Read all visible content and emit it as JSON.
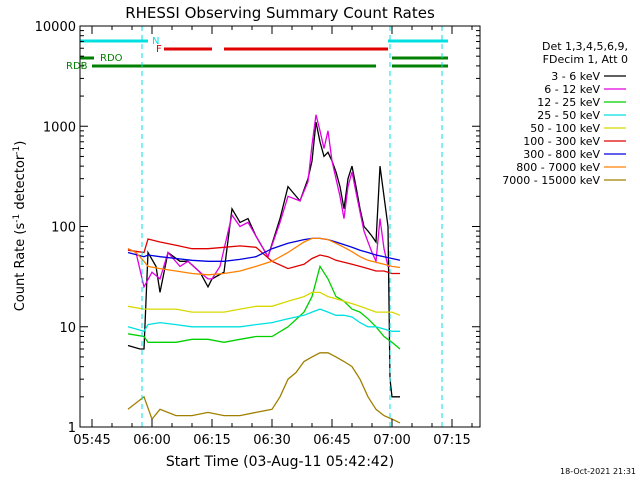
{
  "chart_data": {
    "type": "line",
    "title": "RHESSI Observing Summary Count Rates",
    "xlabel": "Start Time (03-Aug-11 05:42:42)",
    "ylabel_main": "Count Rate (s",
    "ylabel_sup1": "-1",
    "ylabel_mid": " detector",
    "ylabel_sup2": "-1",
    "ylabel_end": ")",
    "x_range_min": [
      0,
      100
    ],
    "y_scale": "log",
    "ylim": [
      1,
      10000
    ],
    "xtick_minutes": [
      3,
      18,
      33,
      48,
      63,
      78,
      93
    ],
    "xtick_labels": [
      "05:45",
      "06:00",
      "06:15",
      "06:30",
      "06:45",
      "07:00",
      "07:15"
    ],
    "ytick_values": [
      1,
      10,
      100,
      1000,
      10000
    ],
    "ytick_labels": [
      "1",
      "10",
      "100",
      "1000",
      "10000"
    ],
    "timestamp": "18-Oct-2021 21:31",
    "legend": {
      "header1": "Det 1,3,4,5,6,9,",
      "header2": "FDecim 1, Att 0",
      "entries": [
        {
          "label": "3 - 6 keV",
          "color": "#000000"
        },
        {
          "label": "6 - 12 keV",
          "color": "#e000e0"
        },
        {
          "label": "12 - 25 keV",
          "color": "#00d000"
        },
        {
          "label": "25 - 50 keV",
          "color": "#00e0e0"
        },
        {
          "label": "50 - 100 keV",
          "color": "#d8d800"
        },
        {
          "label": "100 - 300 keV",
          "color": "#e00000"
        },
        {
          "label": "300 - 800 keV",
          "color": "#0000e0"
        },
        {
          "label": "800 - 7000 keV",
          "color": "#ff8000"
        },
        {
          "label": "7000 - 15000 keV",
          "color": "#a08000"
        }
      ]
    },
    "flag_labels": {
      "n": "N",
      "f": "F",
      "rdo": "RDO",
      "rdb": "RDB"
    },
    "flag_bars": {
      "night": {
        "color": "#00e0e0",
        "segments": [
          [
            0,
            17
          ],
          [
            77,
            92
          ]
        ]
      },
      "flare": {
        "color": "#e00000",
        "segments": [
          [
            21,
            33
          ],
          [
            36,
            77
          ]
        ]
      },
      "rdo": {
        "color": "#008000",
        "segments": [
          [
            0,
            3.5
          ],
          [
            78,
            92
          ]
        ]
      },
      "rdb": {
        "color": "#008000",
        "segments": [
          [
            3,
            22
          ],
          [
            22,
            51
          ],
          [
            51,
            74
          ],
          [
            78,
            92
          ]
        ]
      }
    },
    "night_markers_min": [
      0,
      15.5,
      77.5,
      90.5
    ],
    "series": [
      {
        "name": "3 - 6 keV",
        "color": "#000000",
        "points": [
          [
            12,
            6.5
          ],
          [
            15,
            6
          ],
          [
            16,
            6
          ],
          [
            17,
            55
          ],
          [
            19,
            40
          ],
          [
            20,
            22
          ],
          [
            22,
            55
          ],
          [
            25,
            45
          ],
          [
            27,
            45
          ],
          [
            30,
            35
          ],
          [
            32,
            25
          ],
          [
            33,
            30
          ],
          [
            36,
            35
          ],
          [
            38,
            150
          ],
          [
            40,
            110
          ],
          [
            42,
            120
          ],
          [
            44,
            80
          ],
          [
            47,
            50
          ],
          [
            50,
            120
          ],
          [
            52,
            250
          ],
          [
            55,
            180
          ],
          [
            57,
            300
          ],
          [
            58,
            450
          ],
          [
            59,
            1100
          ],
          [
            60,
            700
          ],
          [
            61,
            500
          ],
          [
            62,
            550
          ],
          [
            63,
            450
          ],
          [
            64,
            350
          ],
          [
            65,
            250
          ],
          [
            66,
            150
          ],
          [
            67,
            300
          ],
          [
            68,
            400
          ],
          [
            69,
            250
          ],
          [
            70,
            150
          ],
          [
            71,
            100
          ],
          [
            72,
            90
          ],
          [
            73,
            80
          ],
          [
            74,
            70
          ],
          [
            75,
            400
          ],
          [
            76,
            200
          ],
          [
            77,
            100
          ],
          [
            77.5,
            3
          ],
          [
            78,
            2
          ],
          [
            80,
            2
          ]
        ]
      },
      {
        "name": "6 - 12 keV",
        "color": "#e000e0",
        "points": [
          [
            12,
            60
          ],
          [
            14,
            55
          ],
          [
            16,
            25
          ],
          [
            18,
            35
          ],
          [
            20,
            30
          ],
          [
            22,
            55
          ],
          [
            25,
            40
          ],
          [
            27,
            45
          ],
          [
            30,
            35
          ],
          [
            32,
            30
          ],
          [
            33,
            30
          ],
          [
            35,
            40
          ],
          [
            38,
            130
          ],
          [
            40,
            100
          ],
          [
            42,
            110
          ],
          [
            44,
            80
          ],
          [
            47,
            50
          ],
          [
            50,
            110
          ],
          [
            52,
            200
          ],
          [
            55,
            180
          ],
          [
            57,
            280
          ],
          [
            58,
            650
          ],
          [
            59,
            1300
          ],
          [
            60,
            900
          ],
          [
            61,
            600
          ],
          [
            62,
            900
          ],
          [
            63,
            450
          ],
          [
            64,
            300
          ],
          [
            65,
            200
          ],
          [
            66,
            120
          ],
          [
            67,
            250
          ],
          [
            68,
            350
          ],
          [
            69,
            220
          ],
          [
            70,
            140
          ],
          [
            71,
            90
          ],
          [
            72,
            70
          ],
          [
            73,
            55
          ],
          [
            74,
            45
          ],
          [
            75,
            120
          ],
          [
            76,
            60
          ],
          [
            77,
            40
          ],
          [
            77.5,
            40
          ]
        ]
      },
      {
        "name": "12 - 25 keV",
        "color": "#00d000",
        "points": [
          [
            12,
            8.5
          ],
          [
            16,
            8
          ],
          [
            17,
            7
          ],
          [
            20,
            7
          ],
          [
            24,
            7
          ],
          [
            28,
            7.5
          ],
          [
            32,
            7.5
          ],
          [
            36,
            7
          ],
          [
            40,
            7.5
          ],
          [
            44,
            8
          ],
          [
            48,
            8
          ],
          [
            52,
            10
          ],
          [
            56,
            14
          ],
          [
            58,
            20
          ],
          [
            60,
            40
          ],
          [
            62,
            30
          ],
          [
            64,
            20
          ],
          [
            66,
            18
          ],
          [
            68,
            15
          ],
          [
            70,
            14
          ],
          [
            72,
            12
          ],
          [
            74,
            10
          ],
          [
            76,
            8
          ],
          [
            78,
            7
          ],
          [
            80,
            6
          ]
        ]
      },
      {
        "name": "25 - 50 keV",
        "color": "#00e0e0",
        "points": [
          [
            12,
            10
          ],
          [
            16,
            9
          ],
          [
            17,
            10.5
          ],
          [
            20,
            11
          ],
          [
            24,
            10.5
          ],
          [
            28,
            10
          ],
          [
            32,
            10
          ],
          [
            36,
            10
          ],
          [
            40,
            10
          ],
          [
            44,
            10.5
          ],
          [
            48,
            11
          ],
          [
            52,
            12
          ],
          [
            56,
            13
          ],
          [
            58,
            14
          ],
          [
            60,
            15
          ],
          [
            62,
            14
          ],
          [
            64,
            13
          ],
          [
            66,
            13
          ],
          [
            68,
            12.5
          ],
          [
            70,
            11
          ],
          [
            72,
            10
          ],
          [
            74,
            10
          ],
          [
            76,
            9.5
          ],
          [
            78,
            9
          ],
          [
            80,
            9
          ]
        ]
      },
      {
        "name": "50 - 100 keV",
        "color": "#d8d800",
        "points": [
          [
            12,
            16
          ],
          [
            16,
            15
          ],
          [
            17,
            15
          ],
          [
            20,
            15
          ],
          [
            24,
            15
          ],
          [
            28,
            14
          ],
          [
            32,
            14
          ],
          [
            36,
            14
          ],
          [
            40,
            15
          ],
          [
            44,
            16
          ],
          [
            48,
            16
          ],
          [
            52,
            18
          ],
          [
            56,
            20
          ],
          [
            58,
            22
          ],
          [
            60,
            22
          ],
          [
            62,
            20
          ],
          [
            64,
            19
          ],
          [
            66,
            18
          ],
          [
            68,
            17
          ],
          [
            70,
            16
          ],
          [
            72,
            15
          ],
          [
            74,
            14
          ],
          [
            76,
            14
          ],
          [
            78,
            14
          ],
          [
            80,
            13
          ]
        ]
      },
      {
        "name": "100 - 300 keV",
        "color": "#e00000",
        "points": [
          [
            12,
            58
          ],
          [
            16,
            55
          ],
          [
            17,
            75
          ],
          [
            20,
            70
          ],
          [
            24,
            65
          ],
          [
            28,
            60
          ],
          [
            32,
            60
          ],
          [
            36,
            62
          ],
          [
            40,
            64
          ],
          [
            44,
            62
          ],
          [
            48,
            45
          ],
          [
            52,
            38
          ],
          [
            56,
            42
          ],
          [
            58,
            48
          ],
          [
            60,
            52
          ],
          [
            62,
            50
          ],
          [
            64,
            46
          ],
          [
            66,
            44
          ],
          [
            68,
            42
          ],
          [
            70,
            40
          ],
          [
            72,
            38
          ],
          [
            74,
            36
          ],
          [
            76,
            36
          ],
          [
            78,
            34
          ],
          [
            80,
            34
          ]
        ]
      },
      {
        "name": "300 - 800 keV",
        "color": "#0000e0",
        "points": [
          [
            12,
            55
          ],
          [
            16,
            50
          ],
          [
            17,
            52
          ],
          [
            20,
            50
          ],
          [
            24,
            48
          ],
          [
            28,
            46
          ],
          [
            32,
            45
          ],
          [
            36,
            45
          ],
          [
            40,
            47
          ],
          [
            44,
            50
          ],
          [
            48,
            60
          ],
          [
            52,
            68
          ],
          [
            56,
            74
          ],
          [
            58,
            76
          ],
          [
            60,
            76
          ],
          [
            62,
            74
          ],
          [
            64,
            70
          ],
          [
            66,
            66
          ],
          [
            68,
            62
          ],
          [
            70,
            58
          ],
          [
            72,
            55
          ],
          [
            74,
            52
          ],
          [
            76,
            50
          ],
          [
            78,
            48
          ],
          [
            80,
            46
          ]
        ]
      },
      {
        "name": "800 - 7000 keV",
        "color": "#ff8000",
        "points": [
          [
            12,
            60
          ],
          [
            14,
            55
          ],
          [
            16,
            45
          ],
          [
            17,
            40
          ],
          [
            20,
            38
          ],
          [
            24,
            36
          ],
          [
            28,
            34
          ],
          [
            32,
            33
          ],
          [
            36,
            34
          ],
          [
            40,
            36
          ],
          [
            44,
            40
          ],
          [
            48,
            45
          ],
          [
            52,
            55
          ],
          [
            56,
            70
          ],
          [
            58,
            76
          ],
          [
            60,
            76
          ],
          [
            62,
            74
          ],
          [
            64,
            68
          ],
          [
            66,
            62
          ],
          [
            68,
            56
          ],
          [
            70,
            50
          ],
          [
            72,
            46
          ],
          [
            74,
            44
          ],
          [
            76,
            42
          ],
          [
            78,
            40
          ],
          [
            80,
            39
          ]
        ]
      },
      {
        "name": "7000 - 15000 keV",
        "color": "#a08000",
        "points": [
          [
            12,
            1.5
          ],
          [
            16,
            2
          ],
          [
            18,
            1.2
          ],
          [
            20,
            1.5
          ],
          [
            24,
            1.3
          ],
          [
            28,
            1.3
          ],
          [
            32,
            1.4
          ],
          [
            36,
            1.3
          ],
          [
            40,
            1.3
          ],
          [
            44,
            1.4
          ],
          [
            48,
            1.5
          ],
          [
            50,
            2
          ],
          [
            52,
            3
          ],
          [
            54,
            3.5
          ],
          [
            56,
            4.5
          ],
          [
            58,
            5
          ],
          [
            60,
            5.5
          ],
          [
            62,
            5.5
          ],
          [
            64,
            5
          ],
          [
            66,
            4.5
          ],
          [
            68,
            4
          ],
          [
            70,
            3
          ],
          [
            72,
            2
          ],
          [
            74,
            1.5
          ],
          [
            76,
            1.3
          ],
          [
            78,
            1.2
          ],
          [
            80,
            1.1
          ]
        ]
      }
    ]
  }
}
